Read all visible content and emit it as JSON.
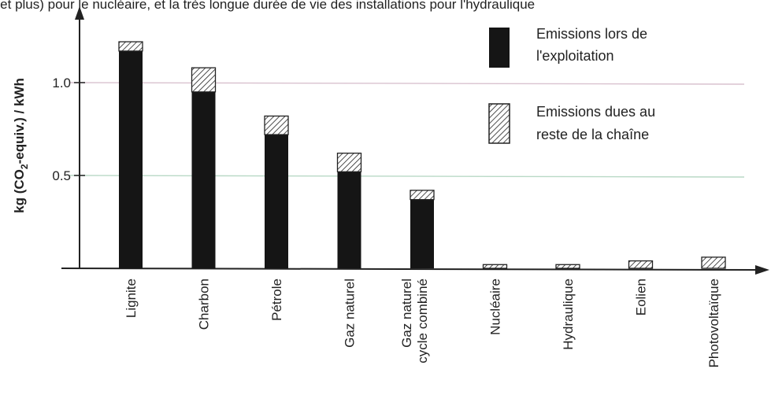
{
  "caption": "e et plus) pour le nucléaire, et la très longue durée de vie des installations pour l'hydraulique",
  "chart_data": {
    "type": "bar",
    "stacked": true,
    "ylabel": "kg (CO2-equiv.) / kWh",
    "ylabel_parts": {
      "pre": "kg (CO",
      "sub": "2",
      "post": "-equiv.) / kWh"
    },
    "ylim": [
      0,
      1.3
    ],
    "yticks": [
      {
        "value": 0.5,
        "label": "0.5"
      },
      {
        "value": 1.0,
        "label": "1.0"
      }
    ],
    "grid": "horizontal at ticks",
    "legend_position": "top-right",
    "categories": [
      [
        "Lignite"
      ],
      [
        "Charbon"
      ],
      [
        "Pétrole"
      ],
      [
        "Gaz naturel"
      ],
      [
        "Gaz naturel",
        "cycle combiné"
      ],
      [
        "Nucléaire"
      ],
      [
        "Hydraulique"
      ],
      [
        "Eolien"
      ],
      [
        "Photovoltaïque"
      ]
    ],
    "series": [
      {
        "name": "Emissions lors de l'exploitation",
        "legend_lines": [
          "Emissions lors de",
          "l'exploitation"
        ],
        "pattern": "solid",
        "color": "#151515",
        "values": [
          1.17,
          0.95,
          0.72,
          0.52,
          0.37,
          0,
          0,
          0,
          0
        ]
      },
      {
        "name": "Emissions dues au reste de la chaîne",
        "legend_lines": [
          "Emissions dues au",
          "reste de la chaîne"
        ],
        "pattern": "hatched",
        "color": "#151515",
        "values": [
          0.05,
          0.13,
          0.1,
          0.1,
          0.05,
          0.02,
          0.02,
          0.04,
          0.06
        ]
      }
    ]
  }
}
